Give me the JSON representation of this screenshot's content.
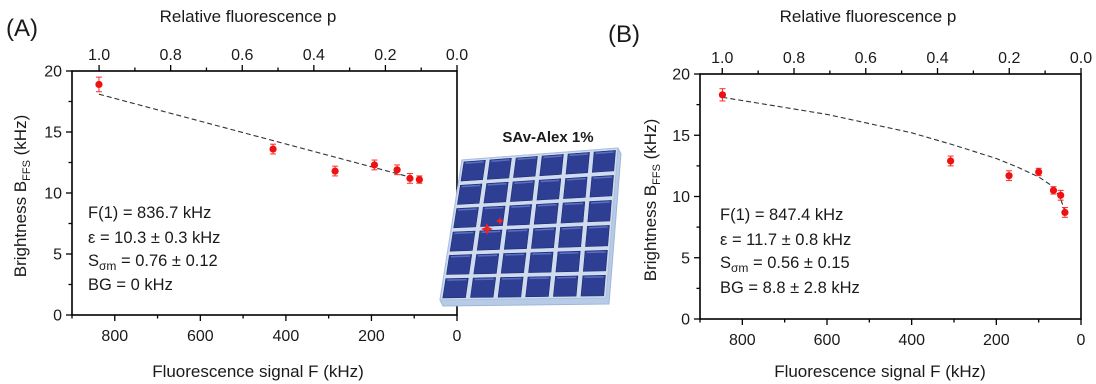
{
  "chart_data": [
    {
      "type": "scatter",
      "panel_label": "(A)",
      "xlabel": "Fluorescence signal F (kHz)",
      "ylabel_main": "Brightness B",
      "ylabel_sub": "FFS",
      "ylabel_unit": " (kHz)",
      "top_xlabel": "Relative fluorescence p",
      "xlim": [
        900,
        0
      ],
      "ylim": [
        0,
        20
      ],
      "x_ticks": [
        800,
        600,
        400,
        200,
        0
      ],
      "y_ticks": [
        0,
        5,
        10,
        15,
        20
      ],
      "top_ticks": [
        "1.0",
        "0.8",
        "0.6",
        "0.4",
        "0.2",
        "0.0"
      ],
      "top_ticks_p": [
        1.0,
        0.8,
        0.6,
        0.4,
        0.2,
        0.0
      ],
      "reference_F": 836.7,
      "points": [
        {
          "x": 837,
          "y": 18.9,
          "err": 0.6
        },
        {
          "x": 430,
          "y": 13.6,
          "err": 0.4
        },
        {
          "x": 285,
          "y": 11.8,
          "err": 0.4
        },
        {
          "x": 193,
          "y": 12.3,
          "err": 0.4
        },
        {
          "x": 140,
          "y": 11.9,
          "err": 0.4
        },
        {
          "x": 110,
          "y": 11.2,
          "err": 0.4
        },
        {
          "x": 88,
          "y": 11.1,
          "err": 0.3
        }
      ],
      "fit_line": [
        [
          837,
          18.1
        ],
        [
          88,
          11.1
        ]
      ],
      "annotations": [
        "F(1) = 836.7 kHz",
        "ε = 10.3 ± 0.3 kHz",
        "S",
        "σm",
        " = 0.76 ± 0.12",
        "BG = 0 kHz"
      ]
    },
    {
      "type": "scatter",
      "panel_label": "(B)",
      "xlabel": "Fluorescence signal F (kHz)",
      "ylabel_main": "Brightness B",
      "ylabel_sub": "FFS",
      "ylabel_unit": " (kHz)",
      "top_xlabel": "Relative fluorescence p",
      "xlim": [
        900,
        0
      ],
      "ylim": [
        0,
        20
      ],
      "x_ticks": [
        800,
        600,
        400,
        200,
        0
      ],
      "y_ticks": [
        0,
        5,
        10,
        15,
        20
      ],
      "top_ticks": [
        "1.0",
        "0.8",
        "0.6",
        "0.4",
        "0.2",
        "0.0"
      ],
      "top_ticks_p": [
        1.0,
        0.8,
        0.6,
        0.4,
        0.2,
        0.0
      ],
      "reference_F": 847.4,
      "points": [
        {
          "x": 847,
          "y": 18.3,
          "err": 0.5
        },
        {
          "x": 308,
          "y": 12.9,
          "err": 0.4
        },
        {
          "x": 170,
          "y": 11.7,
          "err": 0.4
        },
        {
          "x": 100,
          "y": 12.0,
          "err": 0.3
        },
        {
          "x": 65,
          "y": 10.5,
          "err": 0.3
        },
        {
          "x": 48,
          "y": 10.1,
          "err": 0.4
        },
        {
          "x": 38,
          "y": 8.7,
          "err": 0.4
        }
      ],
      "fit_line": [
        [
          847,
          18.1
        ],
        [
          600,
          16.7
        ],
        [
          400,
          15.2
        ],
        [
          300,
          14.2
        ],
        [
          200,
          13.1
        ],
        [
          150,
          12.4
        ],
        [
          100,
          11.6
        ],
        [
          70,
          10.9
        ],
        [
          50,
          10.0
        ],
        [
          38,
          8.8
        ]
      ],
      "annotations": [
        "F(1) = 847.4 kHz",
        "ε = 11.7 ± 0.8 kHz",
        "S",
        "σm",
        " = 0.56 ± 0.15",
        "BG = 8.8 ± 2.8 kHz"
      ]
    }
  ],
  "inset": {
    "title": "SAv-Alex 1%",
    "rows": 6,
    "cols": 6,
    "colors": {
      "tile": "#2e3f93",
      "tile_light": "#5a6fc2",
      "base": "#b8cbe6",
      "star": "#ee2222"
    }
  }
}
